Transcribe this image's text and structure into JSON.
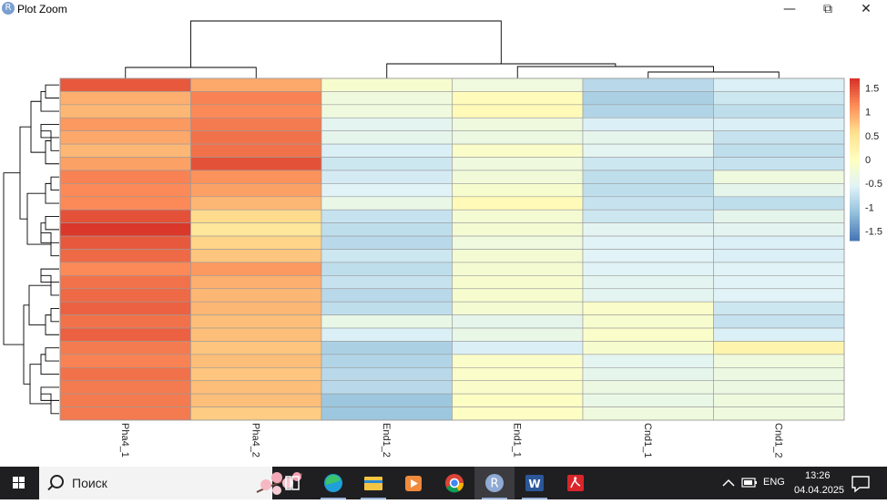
{
  "window": {
    "title": "Plot Zoom",
    "app_icon_letter": "R",
    "minimize_glyph": "—",
    "restore_glyph": "⧉",
    "close_glyph": "✕"
  },
  "chart_data": {
    "type": "heatmap",
    "columns": [
      "Pha4_1",
      "Pha4_2",
      "End1_2",
      "End1_1",
      "Cnd1_1",
      "Cnd1_2"
    ],
    "rows": 26,
    "values": [
      [
        1.45,
        0.95,
        -0.15,
        -0.3,
        -0.85,
        -0.6
      ],
      [
        0.9,
        1.2,
        -0.3,
        0.05,
        -0.95,
        -0.7
      ],
      [
        0.85,
        1.15,
        -0.3,
        0.1,
        -0.9,
        -0.8
      ],
      [
        1.05,
        1.25,
        -0.5,
        -0.3,
        -0.6,
        -0.6
      ],
      [
        0.95,
        1.3,
        -0.45,
        -0.35,
        -0.45,
        -0.75
      ],
      [
        0.85,
        1.3,
        -0.6,
        -0.1,
        -0.5,
        -0.8
      ],
      [
        1.0,
        1.5,
        -0.7,
        -0.3,
        -0.7,
        -0.75
      ],
      [
        1.2,
        1.1,
        -0.65,
        -0.25,
        -0.8,
        -0.3
      ],
      [
        1.15,
        1.0,
        -0.55,
        -0.15,
        -0.8,
        -0.45
      ],
      [
        1.15,
        0.85,
        -0.4,
        0.1,
        -0.75,
        -0.8
      ],
      [
        1.5,
        0.6,
        -0.75,
        -0.2,
        -0.7,
        -0.45
      ],
      [
        1.65,
        0.45,
        -0.8,
        -0.2,
        -0.5,
        -0.5
      ],
      [
        1.45,
        0.65,
        -0.85,
        -0.3,
        -0.55,
        -0.6
      ],
      [
        1.35,
        0.75,
        -0.7,
        -0.2,
        -0.55,
        -0.6
      ],
      [
        1.15,
        1.05,
        -0.8,
        -0.2,
        -0.55,
        -0.55
      ],
      [
        1.3,
        0.9,
        -0.75,
        -0.15,
        -0.5,
        -0.55
      ],
      [
        1.35,
        0.85,
        -0.85,
        -0.15,
        -0.5,
        -0.55
      ],
      [
        1.4,
        0.85,
        -0.8,
        -0.2,
        -0.1,
        -0.7
      ],
      [
        1.3,
        0.8,
        -0.4,
        -0.45,
        -0.15,
        -0.75
      ],
      [
        1.4,
        0.8,
        -0.6,
        -0.4,
        -0.1,
        -0.6
      ],
      [
        1.25,
        0.75,
        -0.95,
        -0.6,
        -0.15,
        0.2
      ],
      [
        1.2,
        0.8,
        -0.9,
        -0.1,
        -0.5,
        -0.3
      ],
      [
        1.3,
        0.75,
        -0.85,
        -0.1,
        -0.45,
        -0.35
      ],
      [
        1.25,
        0.8,
        -0.85,
        -0.1,
        -0.35,
        -0.35
      ],
      [
        1.25,
        0.8,
        -1.05,
        -0.05,
        -0.4,
        -0.3
      ],
      [
        1.25,
        0.7,
        -1.05,
        -0.05,
        -0.3,
        -0.3
      ]
    ],
    "legend": {
      "ticks": [
        1.5,
        1,
        0.5,
        0,
        -0.5,
        -1,
        -1.5
      ],
      "tick_labels": [
        "1.5",
        "1",
        "0.5",
        "0",
        "-0.5",
        "-1",
        "-1.5"
      ],
      "range": [
        -1.7,
        1.7
      ]
    },
    "colormap": [
      "#4575b4",
      "#91bfdb",
      "#e0f3f8",
      "#ffffbf",
      "#fee090",
      "#fc8d59",
      "#d73027"
    ],
    "row_dendrogram": true,
    "column_dendrogram": true,
    "grid": true
  },
  "taskbar": {
    "search_placeholder": "Поиск",
    "language": "ENG",
    "time": "13:26",
    "date": "04.04.2025",
    "apps": [
      "task-view",
      "edge",
      "file-explorer",
      "media-player",
      "chrome",
      "R",
      "word",
      "acrobat"
    ]
  }
}
